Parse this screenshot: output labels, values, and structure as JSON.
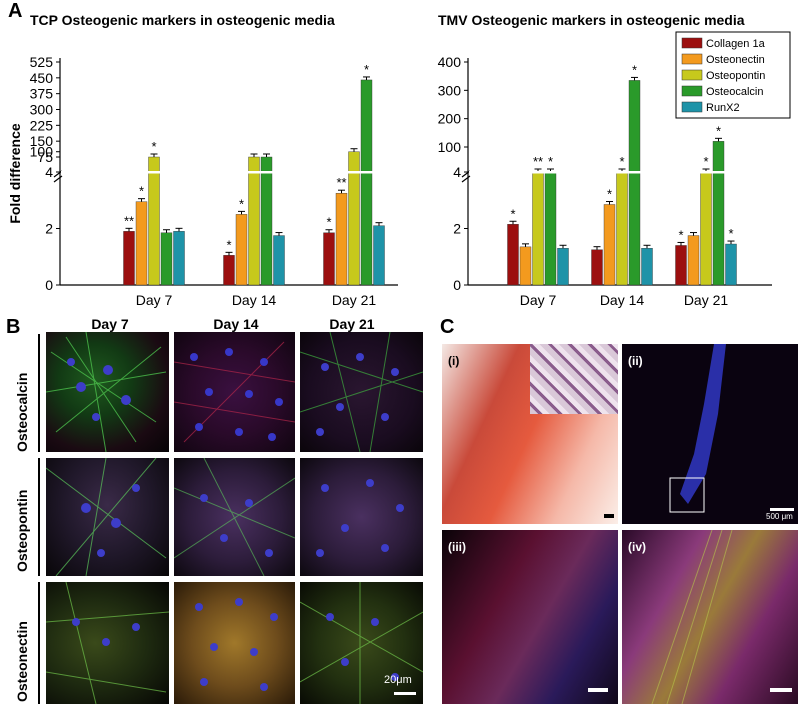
{
  "panel_labels": {
    "a": "A",
    "b": "B",
    "c": "C"
  },
  "colors": {
    "Collagen 1a": "#9c0f0f",
    "Osteonectin": "#f39a1e",
    "Osteopontin": "#c7c91c",
    "Osteocalcin": "#2a9a2a",
    "RunX2": "#1e93a8"
  },
  "chart_data": [
    {
      "type": "bar",
      "title": "TCP Osteogenic markers in osteogenic media",
      "ylabel": "Fold difference",
      "categories": [
        "Day 7",
        "Day 14",
        "Day 21"
      ],
      "broken_axis": true,
      "lower_ticks": [
        "0",
        "2",
        "4"
      ],
      "upper_ticks": [
        "75",
        "100",
        "150",
        "225",
        "300",
        "375",
        "450",
        "525"
      ],
      "series": [
        {
          "name": "Collagen 1a",
          "values": [
            1.9,
            1.05,
            1.85
          ],
          "significance": [
            "**",
            "*",
            "*"
          ]
        },
        {
          "name": "Osteonectin",
          "values": [
            2.95,
            2.5,
            3.25
          ],
          "significance": [
            "*",
            "*",
            "**"
          ]
        },
        {
          "name": "Osteopontin",
          "values": [
            75,
            75,
            100
          ],
          "significance": [
            "*",
            "",
            ""
          ]
        },
        {
          "name": "Osteocalcin",
          "values": [
            1.85,
            75,
            440
          ],
          "significance": [
            "",
            "",
            "*"
          ]
        },
        {
          "name": "RunX2",
          "values": [
            1.9,
            1.75,
            2.1
          ],
          "significance": [
            "",
            "",
            ""
          ]
        }
      ]
    },
    {
      "type": "bar",
      "title": "TMV Osteogenic markers in osteogenic media",
      "ylabel": "",
      "categories": [
        "Day 7",
        "Day 14",
        "Day 21"
      ],
      "broken_axis": true,
      "lower_ticks": [
        "0",
        "2",
        "4"
      ],
      "upper_ticks": [
        "100",
        "200",
        "300",
        "400"
      ],
      "legend_position": "top-right",
      "series": [
        {
          "name": "Collagen 1a",
          "values": [
            2.15,
            1.25,
            1.4
          ],
          "significance": [
            "*",
            "",
            "*"
          ]
        },
        {
          "name": "Osteonectin",
          "values": [
            1.35,
            2.85,
            1.75
          ],
          "significance": [
            "",
            "*",
            ""
          ]
        },
        {
          "name": "Osteopontin",
          "values": [
            4,
            45,
            35
          ],
          "significance": [
            "**",
            "*",
            "*"
          ]
        },
        {
          "name": "Osteocalcin",
          "values": [
            4,
            335,
            120
          ],
          "significance": [
            "*",
            "*",
            "*"
          ]
        },
        {
          "name": "RunX2",
          "values": [
            1.3,
            1.3,
            1.45
          ],
          "significance": [
            "",
            "",
            "*"
          ]
        }
      ]
    }
  ],
  "panel_b": {
    "columns": [
      "Day 7",
      "Day 14",
      "Day 21"
    ],
    "rows": [
      "Osteocalcin",
      "Osteopontin",
      "Osteonectin"
    ],
    "scale_label": "20μm"
  },
  "panel_c": {
    "subpanels": [
      "(i)",
      "(ii)",
      "(iii)",
      "(iv)"
    ],
    "scale_label": "500 μm"
  }
}
